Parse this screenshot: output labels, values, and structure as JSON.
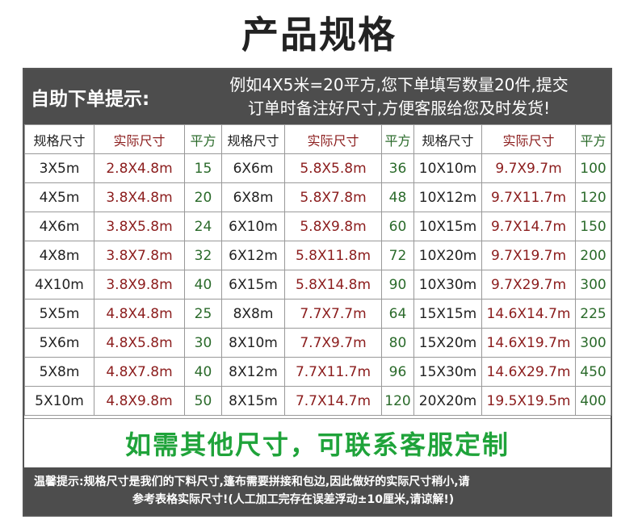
{
  "title": "产品规格",
  "tip": {
    "label": "自助下单提示:",
    "line1": "例如4X5米=20平方,您下单填写数量20件,提交",
    "line2": "订单时备注好尺寸,方便客服给您及时发货!"
  },
  "headers": [
    "规格尺寸",
    "实际尺寸",
    "平方",
    "规格尺寸",
    "实际尺寸",
    "平方",
    "规格尺寸",
    "实际尺寸",
    "平方"
  ],
  "rows": [
    [
      "3X5m",
      "2.8X4.8m",
      "15",
      "6X6m",
      "5.8X5.8m",
      "36",
      "10X10m",
      "9.7X9.7m",
      "100"
    ],
    [
      "4X5m",
      "3.8X4.8m",
      "20",
      "6X8m",
      "5.8X7.8m",
      "48",
      "10X12m",
      "9.7X11.7m",
      "120"
    ],
    [
      "4X6m",
      "3.8X5.8m",
      "24",
      "6X10m",
      "5.8X9.8m",
      "60",
      "10X15m",
      "9.7X14.7m",
      "150"
    ],
    [
      "4X8m",
      "3.8X7.8m",
      "32",
      "6X12m",
      "5.8X11.8m",
      "72",
      "10X20m",
      "9.7X19.7m",
      "200"
    ],
    [
      "4X10m",
      "3.8X9.8m",
      "40",
      "6X15m",
      "5.8X14.8m",
      "90",
      "10X30m",
      "9.7X29.7m",
      "300"
    ],
    [
      "5X5m",
      "4.8X4.8m",
      "25",
      "8X8m",
      "7.7X7.7m",
      "64",
      "15X15m",
      "14.6X14.7m",
      "225"
    ],
    [
      "5X6m",
      "4.8X5.8m",
      "30",
      "8X10m",
      "7.7X9.7m",
      "80",
      "15X20m",
      "14.6X19.7m",
      "300"
    ],
    [
      "5X8m",
      "4.8X7.8m",
      "40",
      "8X12m",
      "7.7X11.7m",
      "96",
      "15X30m",
      "14.6X29.7m",
      "450"
    ],
    [
      "5X10m",
      "4.8X9.8m",
      "50",
      "8X15m",
      "7.7X14.7m",
      "120",
      "20X20m",
      "19.5X19.5m",
      "400"
    ]
  ],
  "custom_text": "如需其他尺寸，可联系客服定制",
  "warm": {
    "line1": "温馨提示:规格尺寸是我们的下料尺寸,篷布需要拼接和包边,因此做好的实际尺寸稍小,请",
    "line2": "参考表格实际尺寸!(人工加工完存在误差浮动±10厘米,请谅解!)"
  },
  "colors": {
    "panel": "#4d4d4d",
    "actual_size": "#8b1c1c",
    "area": "#2a6a2a",
    "custom": "#1fa33a"
  }
}
